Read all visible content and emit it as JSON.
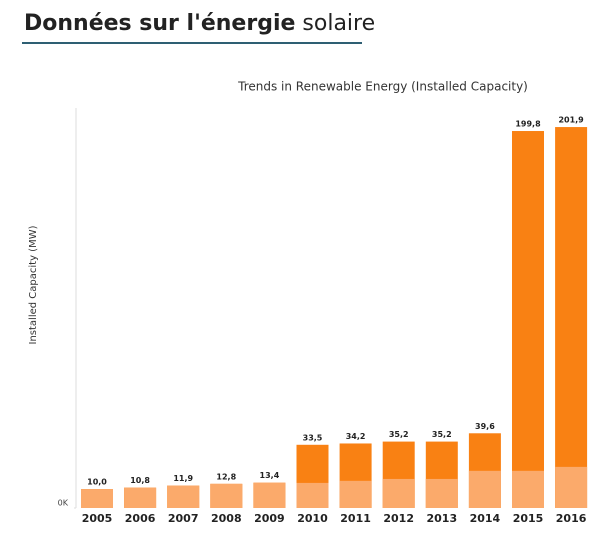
{
  "header": {
    "title_bold": "Données sur l'énergie",
    "title_light": "solaire"
  },
  "chart_data": {
    "type": "bar",
    "title": "Trends in Renewable Energy (Installed Capacity)",
    "y_label": "Installed Capacity (MW)",
    "categories": [
      "2005",
      "2006",
      "2007",
      "2008",
      "2009",
      "2010",
      "2011",
      "2012",
      "2013",
      "2014",
      "2015",
      "2016"
    ],
    "series": [
      {
        "color": "#f98113",
        "values": [
          10.0,
          10.8,
          11.9,
          12.8,
          13.4,
          33.5,
          34.2,
          35.2,
          35.2,
          39.6,
          199.8,
          201.9
        ],
        "value_labels": [
          "10,0",
          "10,8",
          "11,9",
          "12,8",
          "13,4",
          "33,5",
          "34,2",
          "35,2",
          "35,2",
          "39,6",
          "199,8",
          "201,9"
        ]
      },
      {
        "color": "#fbaa6b",
        "values": [
          10.0,
          10.8,
          11.9,
          12.8,
          13.4,
          13.3,
          14.4,
          15.4,
          15.4,
          19.7,
          19.7,
          21.8
        ]
      }
    ],
    "ylim": [
      0,
      212
    ],
    "yticks": [
      {
        "value": 0,
        "label": "0K"
      }
    ]
  }
}
